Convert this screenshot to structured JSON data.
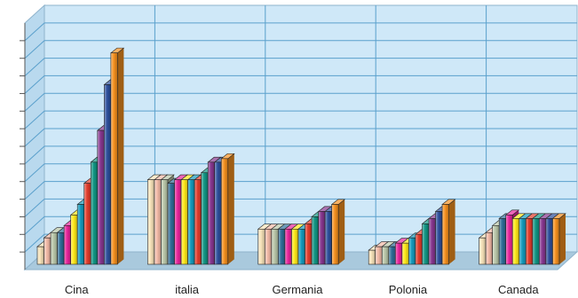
{
  "chart_data": {
    "type": "bar",
    "title": "",
    "xlabel": "",
    "ylabel": "",
    "categories": [
      "Cina",
      "italia",
      "Germania",
      "Polonia",
      "Canada"
    ],
    "ylim": [
      0,
      14
    ],
    "grid": true,
    "legend": "none",
    "tick_labels_y": false,
    "series": [
      {
        "values": [
          1.0,
          4.8,
          2.0,
          0.8,
          1.5
        ]
      },
      {
        "values": [
          1.5,
          4.8,
          2.0,
          1.0,
          1.8
        ]
      },
      {
        "values": [
          1.8,
          4.8,
          2.0,
          1.0,
          2.2
        ]
      },
      {
        "values": [
          1.8,
          4.6,
          2.0,
          1.0,
          2.6
        ]
      },
      {
        "values": [
          2.2,
          4.8,
          2.0,
          1.2,
          2.8
        ]
      },
      {
        "values": [
          2.8,
          4.8,
          2.0,
          1.2,
          2.6
        ]
      },
      {
        "values": [
          3.4,
          4.8,
          2.0,
          1.5,
          2.6
        ]
      },
      {
        "values": [
          4.6,
          4.8,
          2.3,
          1.7,
          2.6
        ]
      },
      {
        "values": [
          5.8,
          5.2,
          2.7,
          2.3,
          2.6
        ]
      },
      {
        "values": [
          7.6,
          5.8,
          3.0,
          2.6,
          2.6
        ]
      },
      {
        "values": [
          10.2,
          5.8,
          3.0,
          3.0,
          2.6
        ]
      },
      {
        "values": [
          12.0,
          6.0,
          3.4,
          3.4,
          2.6
        ]
      }
    ],
    "colors": [
      "#f6e2b8",
      "#f2b9a6",
      "#b9c6a8",
      "#2f6d98",
      "#e8249b",
      "#ffe818",
      "#149bbd",
      "#e23c2b",
      "#109583",
      "#86368f",
      "#2d4f9c",
      "#f5901e"
    ]
  }
}
